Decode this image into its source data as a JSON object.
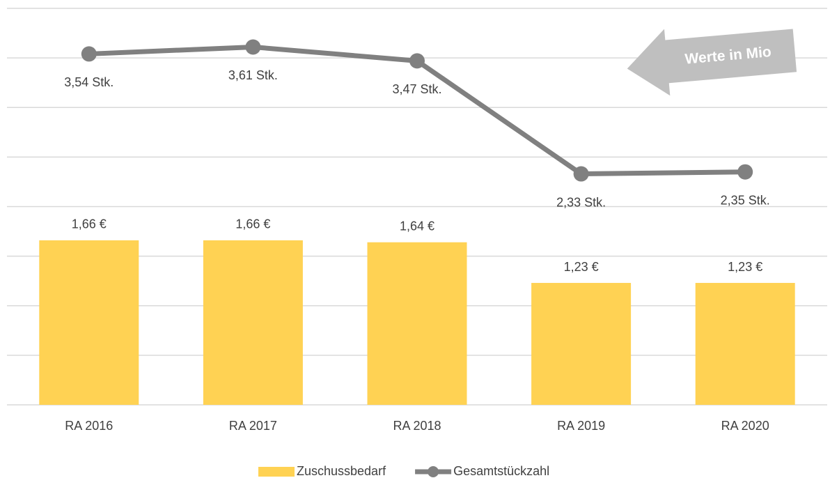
{
  "chart_data": {
    "type": "combo",
    "categories": [
      "RA 2016",
      "RA 2017",
      "RA 2018",
      "RA 2019",
      "RA 2020"
    ],
    "series": [
      {
        "name": "Zuschussbedarf",
        "type": "bar",
        "color": "#ffd253",
        "values": [
          1.66,
          1.66,
          1.64,
          1.23,
          1.23
        ],
        "value_labels": [
          "1,66 €",
          "1,66 €",
          "1,64 €",
          "1,23 €",
          "1,23 €"
        ]
      },
      {
        "name": "Gesamtstückzahl",
        "type": "line",
        "color": "#808080",
        "values": [
          3.54,
          3.61,
          3.47,
          2.33,
          2.35
        ],
        "value_labels": [
          "3,54 Stk.",
          "3,61 Stk.",
          "3,47 Stk.",
          "2,33 Stk.",
          "2,35 Stk."
        ]
      }
    ],
    "ylim": [
      0,
      4
    ],
    "yticks": [
      0,
      0.5,
      1,
      1.5,
      2,
      2.5,
      3,
      3.5,
      4
    ],
    "grid": true,
    "annotation": "Werte in Mio",
    "legend": "bottom"
  }
}
